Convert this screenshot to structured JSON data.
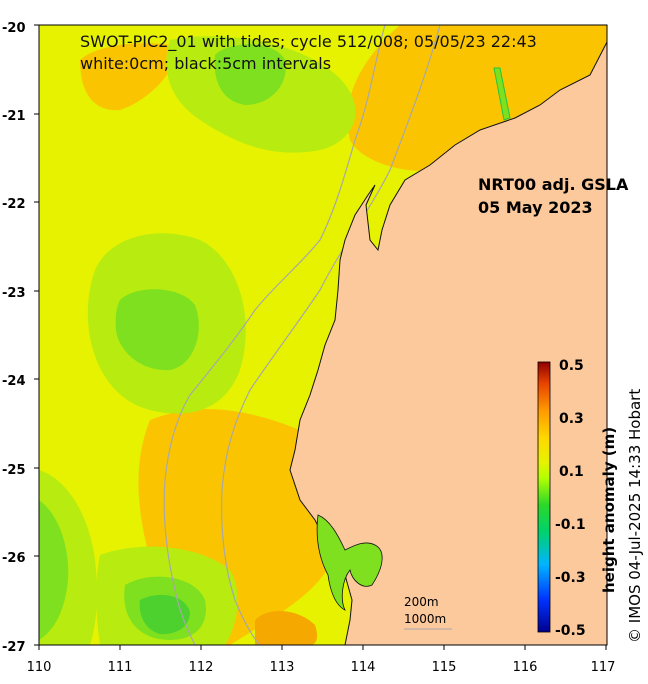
{
  "title_line1": "SWOT-PIC2_01 with tides; cycle 512/008; 05/05/23 22:43",
  "title_line2": "white:0cm; black:5cm intervals",
  "product_label_line1": "NRT00 adj. GSLA",
  "product_label_line2": "05 May 2023",
  "x_ticks": [
    "110",
    "111",
    "112",
    "113",
    "114",
    "115",
    "116",
    "117"
  ],
  "y_ticks": [
    "-20",
    "-21",
    "-22",
    "-23",
    "-24",
    "-25",
    "-26",
    "-27"
  ],
  "colorbar": {
    "title": "height anomaly (m)",
    "ticks": [
      "0.5",
      "0.3",
      "0.1",
      "-0.1",
      "-0.3",
      "-0.5"
    ]
  },
  "scale_labels": [
    "200m",
    "1000m"
  ],
  "credit": "© IMOS 04-Jul-2025 14:33 Hobart",
  "colors": {
    "land": "#fcc99c",
    "ocean_high": "#fbc400",
    "ocean_mid": "#e6f200",
    "ocean_low": "#7fe01f",
    "ocean_lowest": "#23c43c",
    "bathymetry": "#a8a8a8"
  }
}
